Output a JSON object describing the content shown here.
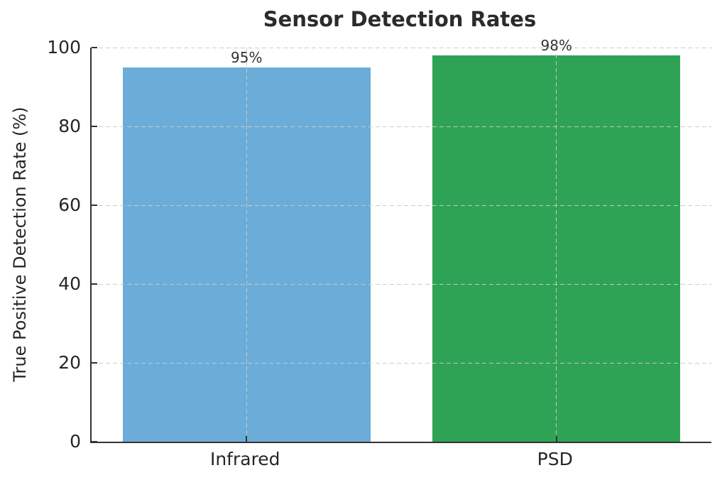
{
  "chart_data": {
    "type": "bar",
    "title": "Sensor Detection Rates",
    "categories": [
      "Infrared",
      "PSD"
    ],
    "values": [
      95,
      98
    ],
    "bar_value_labels": [
      "95%",
      "98%"
    ],
    "bar_colors": [
      "#6badd8",
      "#2fa355"
    ],
    "xlabel": "",
    "ylabel": "True Positive Detection Rate (%)",
    "ylim": [
      0,
      100
    ],
    "yticks": [
      0,
      20,
      40,
      60,
      80,
      100
    ],
    "bar_width_fraction": 0.8,
    "grid": "dashed, both axes, drawn over bars",
    "legend_position": "none"
  },
  "style_colors": {
    "axis": "#333333",
    "grid": "#c9c9c9",
    "text": "#262626",
    "title_text": "#2b2b2b",
    "background": "#ffffff"
  }
}
